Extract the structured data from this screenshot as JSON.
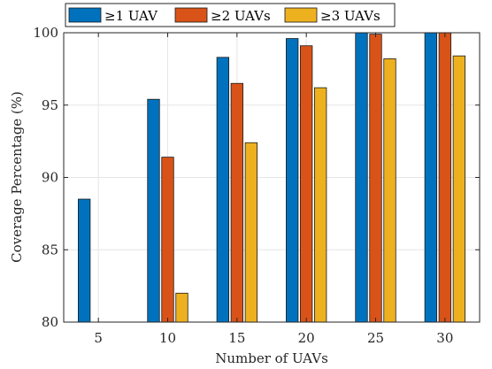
{
  "chart_data": {
    "type": "bar",
    "categories": [
      "5",
      "10",
      "15",
      "20",
      "25",
      "30"
    ],
    "series": [
      {
        "name": "≥1 UAV",
        "color": "#0072BD",
        "values": [
          88.5,
          95.4,
          98.3,
          99.6,
          100,
          100
        ]
      },
      {
        "name": "≥2 UAVs",
        "color": "#D95319",
        "values": [
          80,
          91.4,
          96.5,
          99.1,
          99.9,
          100
        ]
      },
      {
        "name": "≥3 UAVs",
        "color": "#EDB120",
        "values": [
          80,
          82.0,
          92.4,
          96.2,
          98.2,
          98.4
        ]
      }
    ],
    "xlabel": "Number of UAVs",
    "ylabel": "Coverage Percentage (%)",
    "ylim": [
      80,
      100
    ],
    "yticks": [
      "80",
      "85",
      "90",
      "95",
      "100"
    ],
    "grid": true,
    "legend_position": "top"
  }
}
